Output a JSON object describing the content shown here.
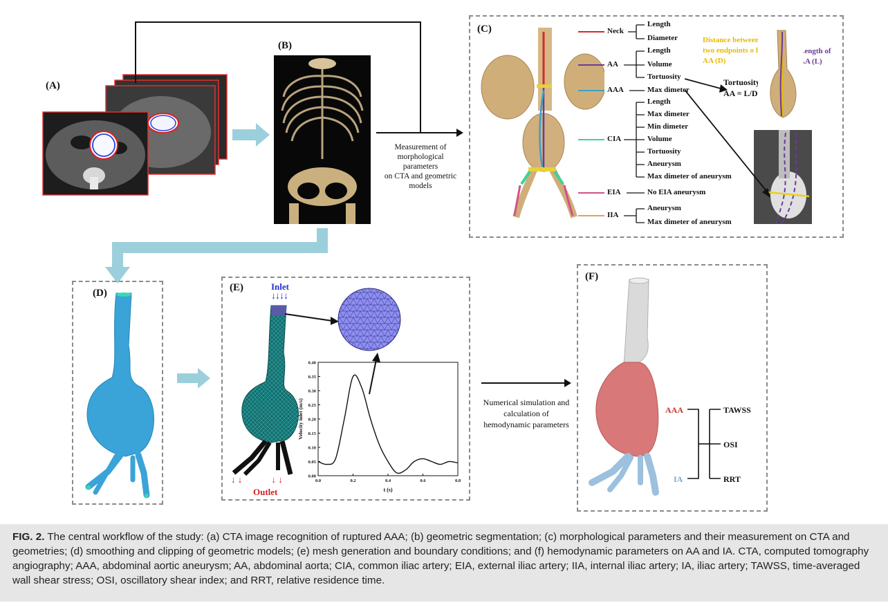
{
  "panels": {
    "a": "(A)",
    "b": "(B)",
    "c": "(C)",
    "d": "(D)",
    "e": "(E)",
    "f": "(F)"
  },
  "flow": {
    "measurement": [
      "Measurement of",
      "morphological parameters",
      "on CTA and geometric",
      "models"
    ],
    "simulation": [
      "Numerical simulation and",
      "calculation of",
      "hemodynamic parameters"
    ]
  },
  "panel_c": {
    "segments": [
      {
        "name": "Neck",
        "color": "#d42a2a",
        "params": [
          "Length",
          "Diameter"
        ]
      },
      {
        "name": "AA",
        "color": "#6a3a9a",
        "params": [
          "Length",
          "Volume",
          "Tortuosity"
        ]
      },
      {
        "name": "AAA",
        "color": "#3aa0c8",
        "params": [
          "Max dimeter"
        ]
      },
      {
        "name": "CIA",
        "color": "#3ad39a",
        "params": [
          "Length",
          "Max dimeter",
          "Min dimeter",
          "Volume",
          "Tortuosity",
          "Aneurysm",
          "Max dimeter of aneurysm"
        ]
      },
      {
        "name": "EIA",
        "color": "#d4508a",
        "params": [
          "No EIA aneurysm"
        ]
      },
      {
        "name": "IIA",
        "color": "#e0a060",
        "params": [
          "Aneurysm",
          "Max dimeter of aneurysm"
        ]
      }
    ],
    "distance_label": [
      "Distance between",
      "two endpoints o f",
      "AA (D)"
    ],
    "length_label": [
      "Length of",
      "AA (L)"
    ],
    "tortuosity_label": [
      "Tortuosity of",
      "AA = L/D"
    ]
  },
  "panel_e": {
    "inlet": "Inlet",
    "outlet": "Outlet",
    "chart_data": {
      "type": "line",
      "xlabel": "t (s)",
      "ylabel": "Velocity inlet (m/s)",
      "xlim": [
        0.0,
        0.8
      ],
      "ylim": [
        0.0,
        0.4
      ],
      "xticks": [
        "0.0",
        "0.2",
        "0.4",
        "0.6",
        "0.8"
      ],
      "yticks": [
        "0.00",
        "0.05",
        "0.10",
        "0.15",
        "0.20",
        "0.25",
        "0.30",
        "0.35",
        "0.40"
      ],
      "x": [
        0.0,
        0.05,
        0.1,
        0.15,
        0.2,
        0.25,
        0.3,
        0.35,
        0.4,
        0.45,
        0.5,
        0.55,
        0.6,
        0.65,
        0.7,
        0.75,
        0.8
      ],
      "y": [
        0.05,
        0.04,
        0.06,
        0.2,
        0.35,
        0.31,
        0.2,
        0.11,
        0.05,
        0.01,
        0.02,
        0.05,
        0.06,
        0.05,
        0.04,
        0.05,
        0.045
      ]
    }
  },
  "panel_f": {
    "aaa": "AAA",
    "ia": "IA",
    "params": [
      "TAWSS",
      "OSI",
      "RRT"
    ]
  },
  "colors": {
    "arrow_light": "#9ccfdc",
    "aneurysm_red": "#d87878",
    "ia_blue": "#9cc0de",
    "mesh_teal": "#1f8a8a",
    "inlet_blue": "#2233cc",
    "outlet_red": "#d02020",
    "caption_bg": "#e6e6e6"
  },
  "caption": {
    "label": "FIG. 2.",
    "text": " The central workflow of the study: (a) CTA image recognition of ruptured AAA; (b) geometric segmentation; (c) morphological parameters and their measurement on CTA and geometries; (d) smoothing and clipping of geometric models; (e) mesh generation and boundary conditions; and (f) hemodynamic parameters on AA and IA. CTA, computed tomography angiography; AAA, abdominal aortic aneurysm; AA, abdominal aorta; CIA, common iliac artery; EIA, external iliac artery; IIA, internal iliac artery; IA, iliac artery; TAWSS, time-averaged wall shear stress; OSI, oscillatory shear index; and RRT, relative residence time."
  }
}
